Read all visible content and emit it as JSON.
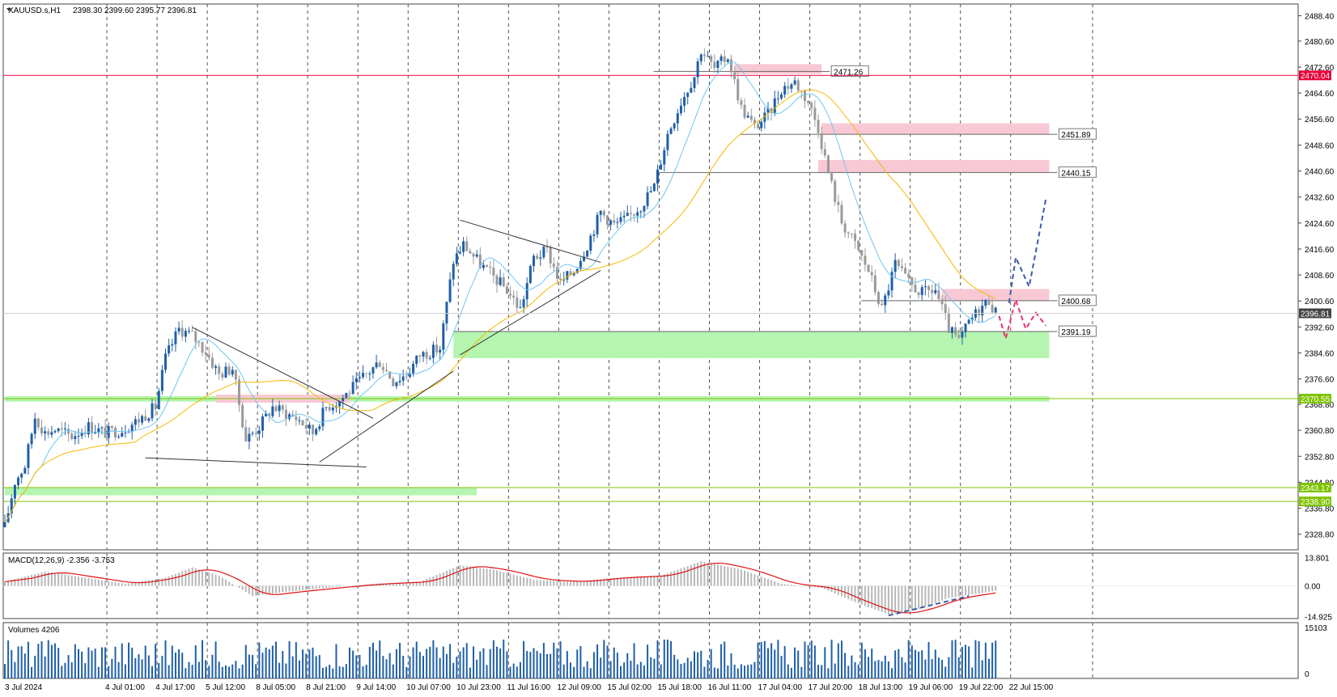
{
  "header": {
    "symbol": "XAUUSD.s,H1",
    "ohlc": "2398.30 2399.60 2395.77 2396.81"
  },
  "chart_data": {
    "type": "candlestick",
    "title": "XAUUSD.s,H1",
    "price_axis": {
      "range": [
        2324,
        2492
      ],
      "ticks": [
        "2488.40",
        "2480.60",
        "2472.60",
        "2464.60",
        "2456.60",
        "2448.60",
        "2440.60",
        "2432.60",
        "2424.60",
        "2416.60",
        "2408.60",
        "2400.60",
        "2392.60",
        "2384.60",
        "2376.60",
        "2368.80",
        "2360.80",
        "2352.80",
        "2344.80",
        "2336.80",
        "2328.80"
      ]
    },
    "time_axis": {
      "bars": 300,
      "labels": [
        {
          "text": "3 Jul 2024",
          "bar": 0
        },
        {
          "text": "4 Jul 01:00",
          "bar": 15
        },
        {
          "text": "4 Jul 17:00",
          "bar": 30
        },
        {
          "text": "5 Jul 12:00",
          "bar": 45
        },
        {
          "text": "8 Jul 05:00",
          "bar": 60
        },
        {
          "text": "8 Jul 21:00",
          "bar": 75
        },
        {
          "text": "9 Jul 14:00",
          "bar": 90
        },
        {
          "text": "10 Jul 07:00",
          "bar": 105
        },
        {
          "text": "10 Jul 23:00",
          "bar": 120
        },
        {
          "text": "11 Jul 16:00",
          "bar": 135
        },
        {
          "text": "12 Jul 09:00",
          "bar": 150
        },
        {
          "text": "15 Jul 02:00",
          "bar": 165
        },
        {
          "text": "15 Jul 18:00",
          "bar": 180
        },
        {
          "text": "16 Jul 11:00",
          "bar": 195
        },
        {
          "text": "17 Jul 04:00",
          "bar": 210
        },
        {
          "text": "17 Jul 20:00",
          "bar": 225
        },
        {
          "text": "18 Jul 13:00",
          "bar": 240
        },
        {
          "text": "19 Jul 06:00",
          "bar": 255
        },
        {
          "text": "19 Jul 22:00",
          "bar": 270
        },
        {
          "text": "22 Jul 15:00",
          "bar": 285
        }
      ]
    },
    "price_path": [
      {
        "bar": 0,
        "price": 2331
      },
      {
        "bar": 3,
        "price": 2345
      },
      {
        "bar": 6,
        "price": 2350
      },
      {
        "bar": 9,
        "price": 2365
      },
      {
        "bar": 12,
        "price": 2360
      },
      {
        "bar": 15,
        "price": 2361
      },
      {
        "bar": 20,
        "price": 2359
      },
      {
        "bar": 25,
        "price": 2362
      },
      {
        "bar": 30,
        "price": 2360
      },
      {
        "bar": 35,
        "price": 2361
      },
      {
        "bar": 40,
        "price": 2364
      },
      {
        "bar": 45,
        "price": 2368
      },
      {
        "bar": 48,
        "price": 2383
      },
      {
        "bar": 52,
        "price": 2392
      },
      {
        "bar": 56,
        "price": 2390
      },
      {
        "bar": 60,
        "price": 2385
      },
      {
        "bar": 64,
        "price": 2378
      },
      {
        "bar": 68,
        "price": 2380
      },
      {
        "bar": 72,
        "price": 2358
      },
      {
        "bar": 76,
        "price": 2362
      },
      {
        "bar": 80,
        "price": 2368
      },
      {
        "bar": 84,
        "price": 2366
      },
      {
        "bar": 88,
        "price": 2364
      },
      {
        "bar": 92,
        "price": 2360
      },
      {
        "bar": 96,
        "price": 2368
      },
      {
        "bar": 100,
        "price": 2370
      },
      {
        "bar": 104,
        "price": 2374
      },
      {
        "bar": 108,
        "price": 2378
      },
      {
        "bar": 112,
        "price": 2382
      },
      {
        "bar": 116,
        "price": 2376
      },
      {
        "bar": 120,
        "price": 2378
      },
      {
        "bar": 124,
        "price": 2384
      },
      {
        "bar": 130,
        "price": 2386
      },
      {
        "bar": 134,
        "price": 2413
      },
      {
        "bar": 137,
        "price": 2418
      },
      {
        "bar": 142,
        "price": 2412
      },
      {
        "bar": 146,
        "price": 2408
      },
      {
        "bar": 150,
        "price": 2404
      },
      {
        "bar": 154,
        "price": 2398
      },
      {
        "bar": 158,
        "price": 2414
      },
      {
        "bar": 162,
        "price": 2416
      },
      {
        "bar": 166,
        "price": 2406
      },
      {
        "bar": 170,
        "price": 2410
      },
      {
        "bar": 174,
        "price": 2418
      },
      {
        "bar": 178,
        "price": 2428
      },
      {
        "bar": 182,
        "price": 2424
      },
      {
        "bar": 186,
        "price": 2426
      },
      {
        "bar": 190,
        "price": 2430
      },
      {
        "bar": 194,
        "price": 2436
      },
      {
        "bar": 198,
        "price": 2452
      },
      {
        "bar": 202,
        "price": 2462
      },
      {
        "bar": 206,
        "price": 2470
      },
      {
        "bar": 208,
        "price": 2478
      },
      {
        "bar": 212,
        "price": 2472
      },
      {
        "bar": 216,
        "price": 2476
      },
      {
        "bar": 220,
        "price": 2460
      },
      {
        "bar": 224,
        "price": 2454
      },
      {
        "bar": 228,
        "price": 2458
      },
      {
        "bar": 232,
        "price": 2466
      },
      {
        "bar": 236,
        "price": 2468
      },
      {
        "bar": 240,
        "price": 2462
      },
      {
        "bar": 243,
        "price": 2454
      },
      {
        "bar": 246,
        "price": 2440
      },
      {
        "bar": 250,
        "price": 2425
      },
      {
        "bar": 254,
        "price": 2418
      },
      {
        "bar": 258,
        "price": 2410
      },
      {
        "bar": 262,
        "price": 2398
      },
      {
        "bar": 266,
        "price": 2412
      },
      {
        "bar": 270,
        "price": 2406
      },
      {
        "bar": 274,
        "price": 2403
      },
      {
        "bar": 278,
        "price": 2404
      },
      {
        "bar": 282,
        "price": 2392
      },
      {
        "bar": 285,
        "price": 2388
      },
      {
        "bar": 288,
        "price": 2394
      },
      {
        "bar": 291,
        "price": 2398
      },
      {
        "bar": 294,
        "price": 2401
      },
      {
        "bar": 296,
        "price": 2397
      }
    ],
    "ma_fast_color": "#6ec6f0",
    "ma_slow_color": "#f5b800",
    "horizontal_levels": [
      {
        "price": 2470.04,
        "label": "2470.04",
        "color": "#e8003a",
        "tag": true
      },
      {
        "price": 2370.55,
        "label": "2370.55",
        "color": "#7fc400",
        "tag": true
      },
      {
        "price": 2343.17,
        "label": "2343.17",
        "color": "#7fc400",
        "tag": true
      },
      {
        "price": 2338.9,
        "label": "2338.90",
        "color": "#7fc400",
        "tag": true
      }
    ],
    "current_price": {
      "price": 2396.81,
      "label": "2396.81"
    },
    "zones": [
      {
        "type": "resistance",
        "from_bar": 218,
        "to_bar": 244,
        "low": 2470.5,
        "high": 2473.5,
        "label": "2471.26",
        "label_price": 2471.26
      },
      {
        "type": "resistance",
        "from_bar": 244,
        "to_bar": 312,
        "low": 2451.9,
        "high": 2455.3,
        "label": "2451.89",
        "label_price": 2451.89
      },
      {
        "type": "resistance",
        "from_bar": 243,
        "to_bar": 312,
        "low": 2440.2,
        "high": 2444.0,
        "label": "2440.15",
        "label_price": 2440.15
      },
      {
        "type": "resistance",
        "from_bar": 280,
        "to_bar": 312,
        "low": 2400.7,
        "high": 2404.3,
        "label": "2400.68",
        "label_price": 2400.68
      },
      {
        "type": "support",
        "from_bar": 134,
        "to_bar": 312,
        "low": 2383.0,
        "high": 2391.2,
        "label": "2391.19",
        "label_price": 2391.19
      },
      {
        "type": "support",
        "from_bar": 0,
        "to_bar": 312,
        "low": 2369.6,
        "high": 2371.3,
        "label": "",
        "label_price": 2370.5
      },
      {
        "type": "support",
        "from_bar": 0,
        "to_bar": 141,
        "low": 2340.8,
        "high": 2343.2,
        "label": "",
        "label_price": 2342.0
      },
      {
        "type": "resistance",
        "from_bar": 63,
        "to_bar": 103,
        "low": 2369.3,
        "high": 2371.8,
        "label": "",
        "label_price": 2370.5
      }
    ],
    "trendlines": [
      {
        "x1": 42,
        "y1": 2352.3,
        "x2": 108,
        "y2": 2349.5,
        "color": "#333333"
      },
      {
        "x1": 56,
        "y1": 2392.5,
        "x2": 110,
        "y2": 2364.5,
        "color": "#333333"
      },
      {
        "x1": 94,
        "y1": 2351.0,
        "x2": 134,
        "y2": 2379.0,
        "color": "#333333"
      },
      {
        "x1": 136,
        "y1": 2425.5,
        "x2": 178,
        "y2": 2412.5,
        "color": "#333333"
      },
      {
        "x1": 136,
        "y1": 2384.0,
        "x2": 178,
        "y2": 2410.0,
        "color": "#333333"
      }
    ],
    "projections": [
      {
        "color": "#3a5ba8",
        "points": [
          {
            "bar": 300,
            "price": 2400
          },
          {
            "bar": 302,
            "price": 2414
          },
          {
            "bar": 306,
            "price": 2405
          },
          {
            "bar": 311,
            "price": 2432
          }
        ]
      },
      {
        "color": "#e8336b",
        "points": [
          {
            "bar": 297,
            "price": 2396
          },
          {
            "bar": 299,
            "price": 2389
          },
          {
            "bar": 302,
            "price": 2401
          },
          {
            "bar": 305,
            "price": 2392
          },
          {
            "bar": 308,
            "price": 2397
          },
          {
            "bar": 311,
            "price": 2393
          }
        ]
      }
    ],
    "macd": {
      "label": "MACD(12,26,9) -2.356 -3.753",
      "ticks": [
        "13.801",
        "0.00",
        "-14.925"
      ],
      "range": [
        -16,
        16
      ],
      "path": [
        {
          "bar": 0,
          "value": 2
        },
        {
          "bar": 12,
          "value": 7
        },
        {
          "bar": 24,
          "value": 4
        },
        {
          "bar": 36,
          "value": 1
        },
        {
          "bar": 48,
          "value": 4
        },
        {
          "bar": 56,
          "value": 9
        },
        {
          "bar": 64,
          "value": 5
        },
        {
          "bar": 74,
          "value": -5
        },
        {
          "bar": 84,
          "value": -3
        },
        {
          "bar": 96,
          "value": -1
        },
        {
          "bar": 110,
          "value": 1
        },
        {
          "bar": 124,
          "value": 2
        },
        {
          "bar": 136,
          "value": 10
        },
        {
          "bar": 146,
          "value": 8
        },
        {
          "bar": 158,
          "value": 3
        },
        {
          "bar": 170,
          "value": 2
        },
        {
          "bar": 182,
          "value": 4
        },
        {
          "bar": 196,
          "value": 5
        },
        {
          "bar": 208,
          "value": 12
        },
        {
          "bar": 220,
          "value": 8
        },
        {
          "bar": 232,
          "value": 1
        },
        {
          "bar": 244,
          "value": -1
        },
        {
          "bar": 254,
          "value": -8
        },
        {
          "bar": 264,
          "value": -14
        },
        {
          "bar": 272,
          "value": -12
        },
        {
          "bar": 282,
          "value": -6
        },
        {
          "bar": 290,
          "value": -4
        },
        {
          "bar": 296,
          "value": -2.4
        }
      ]
    },
    "volumes": {
      "label": "Volumes 4206",
      "ticks": [
        "15103",
        "0"
      ],
      "max": 15103
    }
  }
}
